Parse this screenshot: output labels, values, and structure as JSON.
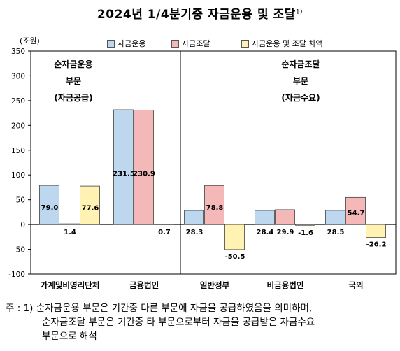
{
  "title": "2024년 1/4분기중 자금운용 및 조달",
  "title_note_mark": "1)",
  "unit": "(조원)",
  "left_panel_label": [
    "순자금운용",
    "부문",
    "(자금공급)"
  ],
  "right_panel_label": [
    "순자금조달",
    "부문",
    "(자금수요)"
  ],
  "colors": {
    "운용": "#bdd7ee",
    "조달": "#f4b8b8",
    "차액": "#fff2b3",
    "border": "#404040"
  },
  "footnote": {
    "prefix": "주 : 1)",
    "lines": [
      "순자금운용 부문은 기간중 다른 부문에 자금을 공급하였음을 의미하며,",
      "순자금조달 부문은 기간중 타 부문으로부터 자금을 공급받은 자금수요",
      "부문으로 해석"
    ]
  },
  "chart_data": {
    "type": "bar",
    "categories": [
      "가계및비영리단체",
      "금융법인",
      "일반정부",
      "비금융법인",
      "국외"
    ],
    "series": [
      {
        "name": "자금운용",
        "values": [
          79.0,
          231.5,
          28.3,
          28.4,
          28.5
        ]
      },
      {
        "name": "자금조달",
        "values": [
          1.4,
          230.9,
          78.8,
          29.9,
          54.7
        ]
      },
      {
        "name": "자금운용 및 조달 차액",
        "values": [
          77.6,
          0.7,
          -50.5,
          -1.6,
          -26.2
        ]
      }
    ],
    "data_labels": [
      [
        "79.0",
        "1.4",
        "77.6"
      ],
      [
        "231.5",
        "230.9",
        "0.7"
      ],
      [
        "28.3",
        "78.8",
        "-50.5"
      ],
      [
        "28.4",
        "29.9",
        "-1.6"
      ],
      [
        "28.5",
        "54.7",
        "-26.2"
      ]
    ],
    "yticks": [
      350,
      300,
      250,
      200,
      150,
      100,
      50,
      0,
      -50,
      -100
    ],
    "ylim": [
      -100,
      350
    ],
    "legend": "top",
    "grid": false
  }
}
